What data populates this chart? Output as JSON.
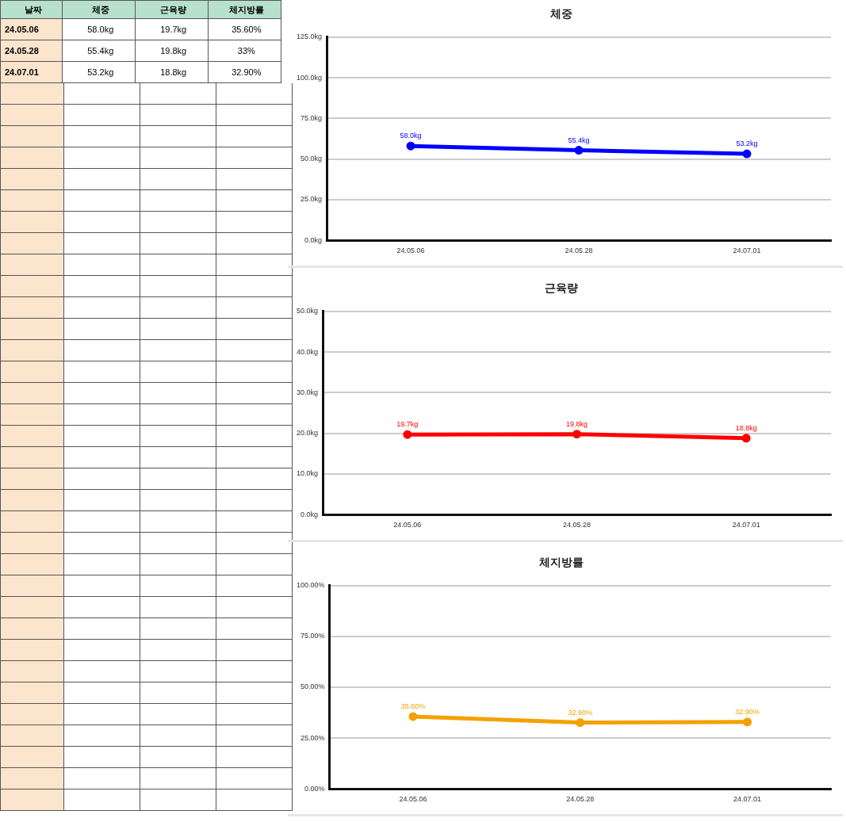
{
  "chart_data": [
    {
      "type": "other",
      "categories": [
        "날짜",
        "체중",
        "근육량",
        "체지방률"
      ],
      "annotations": [
        "24.05.06",
        "58.0kg",
        "19.7kg",
        "35.60%",
        "24.05.28",
        "55.4kg",
        "19.8kg",
        "33%",
        "24.07.01",
        "53.2kg",
        "18.8kg",
        "32.90%"
      ]
    },
    {
      "type": "line",
      "title": "체중",
      "categories": [
        "24.05.06",
        "24.05.28",
        "24.07.01"
      ],
      "series": [
        {
          "color": "#0000ff",
          "values": [
            58.0,
            55.4,
            53.2
          ],
          "value_labels": [
            "58.0kg",
            "55.4kg",
            "53.2kg"
          ]
        }
      ],
      "ylim": [
        0,
        125
      ],
      "yticks": [
        {
          "value": 0,
          "label": "0.0kg"
        },
        {
          "value": 25,
          "label": "25.0kg"
        },
        {
          "value": 50,
          "label": "50.0kg"
        },
        {
          "value": 75,
          "label": "75.0kg"
        },
        {
          "value": 100,
          "label": "100.0kg"
        },
        {
          "value": 125,
          "label": "125.0kg"
        }
      ],
      "grid": "y",
      "marker": "circle"
    },
    {
      "type": "line",
      "title": "근육량",
      "categories": [
        "24.05.06",
        "24.05.28",
        "24.07.01"
      ],
      "series": [
        {
          "color": "#ff0000",
          "values": [
            19.7,
            19.8,
            18.8
          ],
          "value_labels": [
            "19.7kg",
            "19.8kg",
            "18.8kg"
          ]
        }
      ],
      "ylim": [
        0,
        50
      ],
      "yticks": [
        {
          "value": 0,
          "label": "0.0kg"
        },
        {
          "value": 10,
          "label": "10.0kg"
        },
        {
          "value": 20,
          "label": "20.0kg"
        },
        {
          "value": 30,
          "label": "30.0kg"
        },
        {
          "value": 40,
          "label": "40.0kg"
        },
        {
          "value": 50,
          "label": "50.0kg"
        }
      ],
      "grid": "y",
      "marker": "circle"
    },
    {
      "type": "line",
      "title": "체지방률",
      "categories": [
        "24.05.06",
        "24.05.28",
        "24.07.01"
      ],
      "series": [
        {
          "color": "#f4a100",
          "values": [
            35.6,
            32.6,
            32.9
          ],
          "value_labels": [
            "35.60%",
            "32.60%",
            "32.90%"
          ]
        }
      ],
      "ylim": [
        0,
        100
      ],
      "yticks": [
        {
          "value": 0,
          "label": "0.00%"
        },
        {
          "value": 25,
          "label": "25.00%"
        },
        {
          "value": 50,
          "label": "50.00%"
        },
        {
          "value": 75,
          "label": "75.00%"
        },
        {
          "value": 100,
          "label": "100.00%"
        }
      ],
      "grid": "y",
      "marker": "circle"
    }
  ]
}
